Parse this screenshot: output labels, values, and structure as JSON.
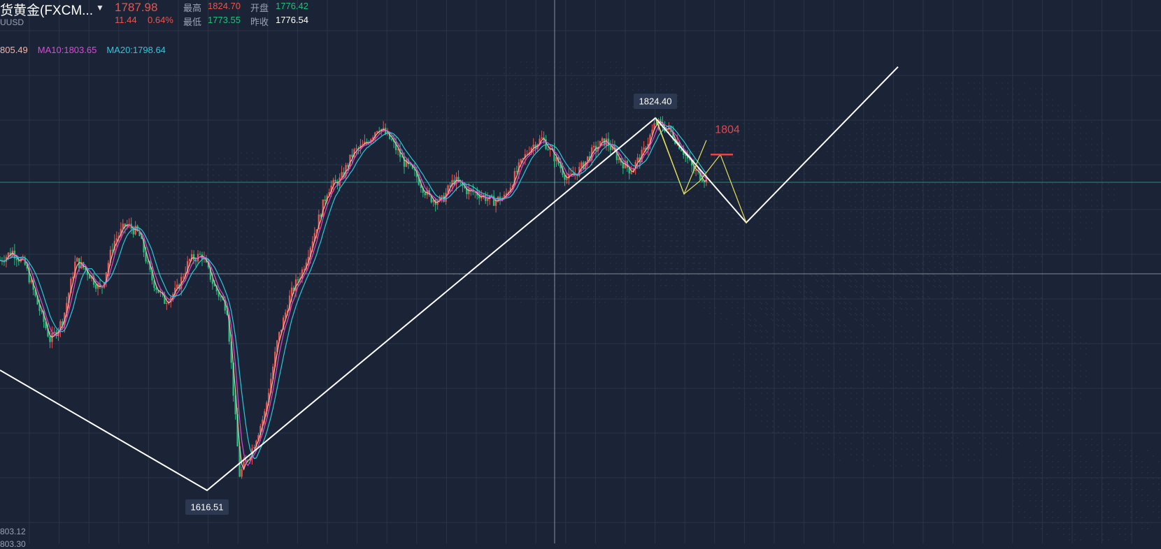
{
  "header": {
    "symbol": "货黄金(FXCM...",
    "dropdown_icon": "chevron-down-icon",
    "sub_symbol": "UUSD",
    "last_price": "1787.98",
    "change": "11.44",
    "change_pct": "0.64%",
    "high_label": "最高",
    "high_value": "1824.70",
    "open_label": "开盘",
    "open_value": "1776.42",
    "low_label": "最低",
    "low_value": "1773.55",
    "prev_close_label": "昨收",
    "prev_close_value": "1776.54"
  },
  "ma": {
    "ma5": "805.49",
    "ma10": "MA10:1803.65",
    "ma20": "MA20:1798.64"
  },
  "footer": {
    "line1": "803.12",
    "line2": "803.30"
  },
  "colors": {
    "background": "#1b2336",
    "grid": "#2b3548",
    "up": "#e8564f",
    "down": "#20c07a",
    "ma5": "#f6b5a8",
    "ma10": "#d94bd8",
    "ma20": "#2ec7dc",
    "trendline": "#ffffff",
    "projection": "#e4e05a",
    "target": "#e8444c",
    "hline_teal": "#2e8a7c",
    "crosshair": "#c8ccd4"
  },
  "chart_data": {
    "type": "candlestick",
    "instrument": "XAUUSD",
    "annotations": {
      "swing_high": "1824.40",
      "swing_low": "1616.51",
      "target": "1804"
    },
    "trend_path": [
      {
        "label": "start",
        "price": 1693
      },
      {
        "label": "swing_low",
        "price": 1616.51
      },
      {
        "label": "swing_high",
        "price": 1824.4
      },
      {
        "label": "pullback_low",
        "price": 1766
      },
      {
        "label": "projected_high",
        "price": 1853
      }
    ],
    "price_path": [
      1745,
      1750,
      1742,
      1720,
      1700,
      1712,
      1745,
      1738,
      1728,
      1755,
      1765,
      1760,
      1735,
      1722,
      1728,
      1745,
      1748,
      1730,
      1718,
      1625,
      1640,
      1660,
      1700,
      1725,
      1740,
      1762,
      1785,
      1790,
      1805,
      1810,
      1820,
      1812,
      1800,
      1792,
      1780,
      1778,
      1790,
      1784,
      1782,
      1778,
      1780,
      1795,
      1808,
      1813,
      1802,
      1790,
      1796,
      1806,
      1812,
      1802,
      1795,
      1805,
      1822,
      1818,
      1808,
      1795,
      1790
    ]
  }
}
